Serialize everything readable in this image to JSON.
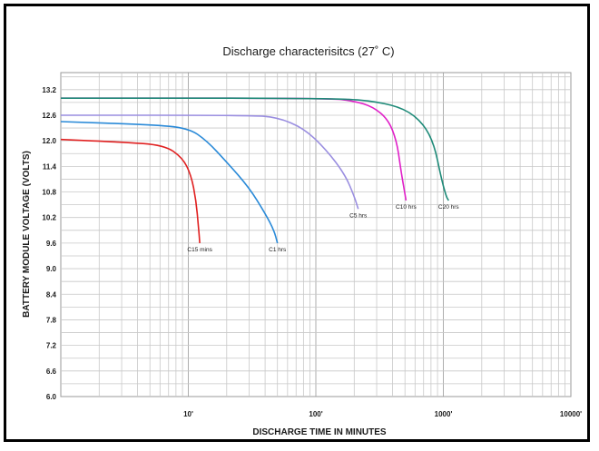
{
  "chart_data": {
    "type": "line",
    "title": "Discharge characterisitcs (27˚ C)",
    "xlabel": "DISCHARGE TIME IN MINUTES",
    "ylabel": "BATTERY MODULE VOLTAGE (VOLTS)",
    "xscale": "log",
    "xlim": [
      1,
      10000
    ],
    "ylim": [
      6.0,
      13.6
    ],
    "yticks": [
      "13.2",
      "12.6",
      "12.0",
      "11.4",
      "10.8",
      "10.2",
      "9.6",
      "9.0",
      "8.4",
      "7.8",
      "7.2",
      "6.6",
      "6.0"
    ],
    "xticks": [
      {
        "value": 10,
        "label": "10'"
      },
      {
        "value": 100,
        "label": "100'"
      },
      {
        "value": 1000,
        "label": "1000'"
      },
      {
        "value": 10000,
        "label": "10000'"
      }
    ],
    "grid": true,
    "series": [
      {
        "name": "C15 mins",
        "color": "#e02020",
        "points": [
          [
            1,
            12.03
          ],
          [
            3,
            11.97
          ],
          [
            6.5,
            11.9
          ],
          [
            9,
            11.6
          ],
          [
            10.5,
            11.2
          ],
          [
            11.5,
            10.6
          ],
          [
            12,
            10.0
          ],
          [
            12.3,
            9.6
          ]
        ]
      },
      {
        "name": "C1 hrs",
        "color": "#2a8ad8",
        "points": [
          [
            1,
            12.45
          ],
          [
            5,
            12.38
          ],
          [
            10,
            12.3
          ],
          [
            14,
            12.0
          ],
          [
            20,
            11.5
          ],
          [
            30,
            10.9
          ],
          [
            40,
            10.3
          ],
          [
            47,
            9.9
          ],
          [
            50,
            9.6
          ]
        ]
      },
      {
        "name": "C5 hrs",
        "color": "#9a8ee0",
        "points": [
          [
            1,
            12.6
          ],
          [
            30,
            12.6
          ],
          [
            50,
            12.55
          ],
          [
            80,
            12.3
          ],
          [
            120,
            11.8
          ],
          [
            170,
            11.2
          ],
          [
            200,
            10.7
          ],
          [
            215,
            10.4
          ]
        ]
      },
      {
        "name": "C10 hrs",
        "color": "#e020c8",
        "points": [
          [
            1,
            13.0
          ],
          [
            130,
            13.0
          ],
          [
            200,
            12.93
          ],
          [
            280,
            12.8
          ],
          [
            370,
            12.5
          ],
          [
            430,
            12.0
          ],
          [
            460,
            11.4
          ],
          [
            490,
            10.9
          ],
          [
            510,
            10.6
          ]
        ]
      },
      {
        "name": "C20 hrs",
        "color": "#1e8a78",
        "points": [
          [
            1,
            13.0
          ],
          [
            150,
            13.0
          ],
          [
            300,
            12.92
          ],
          [
            500,
            12.75
          ],
          [
            700,
            12.4
          ],
          [
            850,
            11.9
          ],
          [
            950,
            11.2
          ],
          [
            1050,
            10.7
          ],
          [
            1100,
            10.6
          ]
        ]
      }
    ]
  }
}
